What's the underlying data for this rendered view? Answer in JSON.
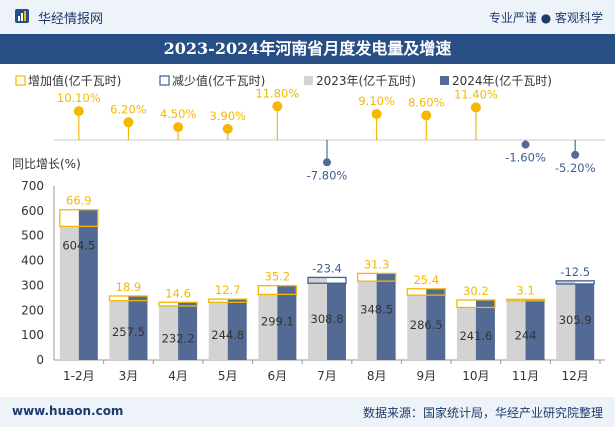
{
  "brand": "华经情报网",
  "tagline": "专业严谨 ● 客观科学",
  "title": "2023-2024年河南省月度发电量及增速",
  "footer": {
    "website": "www.huaon.com",
    "source": "数据来源：国家统计局，华经产业研究院整理"
  },
  "colors": {
    "bar2023": "#d3d3d3",
    "bar2024": "#536a94",
    "increase": "#f5b800",
    "decrease": "#3d5f92",
    "growth_dot_pos": "#f5b800",
    "growth_dot_neg": "#536a94",
    "growth_label_pos": "#f5b800",
    "growth_label_neg": "#3d5f92"
  },
  "chart_data": {
    "type": "bar",
    "categories": [
      "1-2月",
      "3月",
      "4月",
      "5月",
      "6月",
      "7月",
      "8月",
      "9月",
      "10月",
      "11月",
      "12月"
    ],
    "legend": [
      "增加值(亿千瓦时)",
      "减少值(亿千瓦时)",
      "2023年(亿千瓦时)",
      "2024年(亿千瓦时)"
    ],
    "series": [
      {
        "name": "2023年(亿千瓦时)",
        "values": [
          537.6,
          238.6,
          217.6,
          232.1,
          263.9,
          332.2,
          317.2,
          261.1,
          211.4,
          240.9,
          318.4
        ]
      },
      {
        "name": "2024年(亿千瓦时)",
        "values": [
          604.5,
          257.5,
          232.2,
          244.8,
          299.1,
          308.8,
          348.5,
          286.5,
          241.6,
          244,
          305.9
        ]
      }
    ],
    "value_labels_2024": [
      "604.5",
      "257.5",
      "232.2",
      "244.8",
      "299.1",
      "308.8",
      "348.5",
      "286.5",
      "241.6",
      "244",
      "305.9"
    ],
    "change": [
      66.9,
      18.9,
      14.6,
      12.7,
      35.2,
      -23.4,
      31.3,
      25.4,
      30.2,
      3.1,
      -12.5
    ],
    "change_labels": [
      "66.9",
      "18.9",
      "14.6",
      "12.7",
      "35.2",
      "-23.4",
      "31.3",
      "25.4",
      "30.2",
      "3.1",
      "-12.5"
    ],
    "growth": [
      10.1,
      6.2,
      4.5,
      3.9,
      11.8,
      -7.8,
      9.1,
      8.6,
      11.4,
      -1.6,
      -5.2
    ],
    "growth_labels": [
      "10.10%",
      "6.20%",
      "4.50%",
      "3.90%",
      "11.80%",
      "-7.80%",
      "9.10%",
      "8.60%",
      "11.40%",
      "-1.60%",
      "-5.20%"
    ],
    "y_axis_title": "同比增长(%)",
    "yticks": [
      "0",
      "100",
      "200",
      "300",
      "400",
      "500",
      "600",
      "700"
    ],
    "ylim": [
      0,
      700
    ],
    "growth_range": [
      -12,
      16
    ]
  }
}
